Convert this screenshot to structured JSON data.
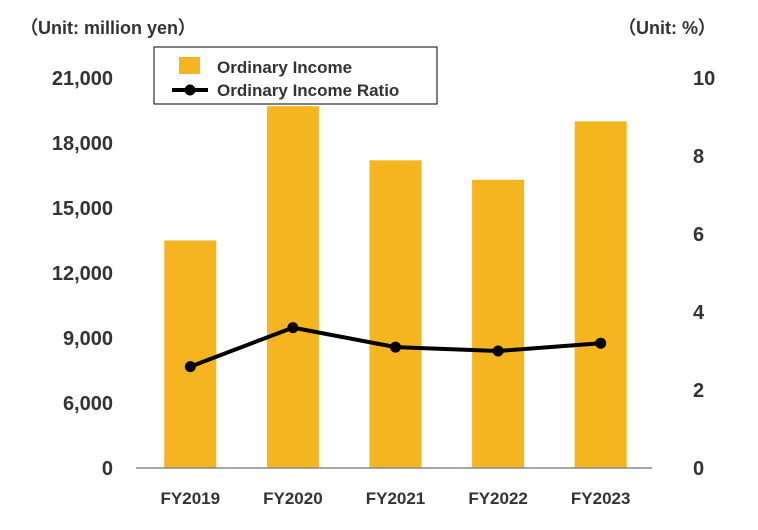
{
  "chart_data": {
    "type": "bar",
    "categories": [
      "FY2019",
      "FY2020",
      "FY2021",
      "FY2022",
      "FY2023"
    ],
    "series": [
      {
        "name": "Ordinary Income",
        "type": "bar",
        "axis": "left",
        "values": [
          13500,
          19700,
          17200,
          16300,
          19000
        ]
      },
      {
        "name": "Ordinary Income Ratio",
        "type": "line",
        "axis": "right",
        "values": [
          2.6,
          3.6,
          3.1,
          3.0,
          3.2
        ]
      }
    ],
    "y_left": {
      "unit_label": "（Unit: million yen）",
      "ylim": [
        0,
        21000
      ],
      "ticks": [
        "0",
        "6,000",
        "9,000",
        "12,000",
        "15,000",
        "18,000",
        "21,000"
      ]
    },
    "y_right": {
      "unit_label": "（Unit: %）",
      "ylim": [
        0,
        10
      ],
      "ticks": [
        "0",
        "2",
        "4",
        "6",
        "8",
        "10"
      ]
    },
    "legend": {
      "placement": "top-left",
      "entries": [
        "Ordinary Income",
        "Ordinary Income Ratio"
      ]
    },
    "grid": false,
    "colors": {
      "bar": "#F5B520",
      "line": "#000000",
      "axis": "#888888",
      "text": "#333333"
    }
  }
}
